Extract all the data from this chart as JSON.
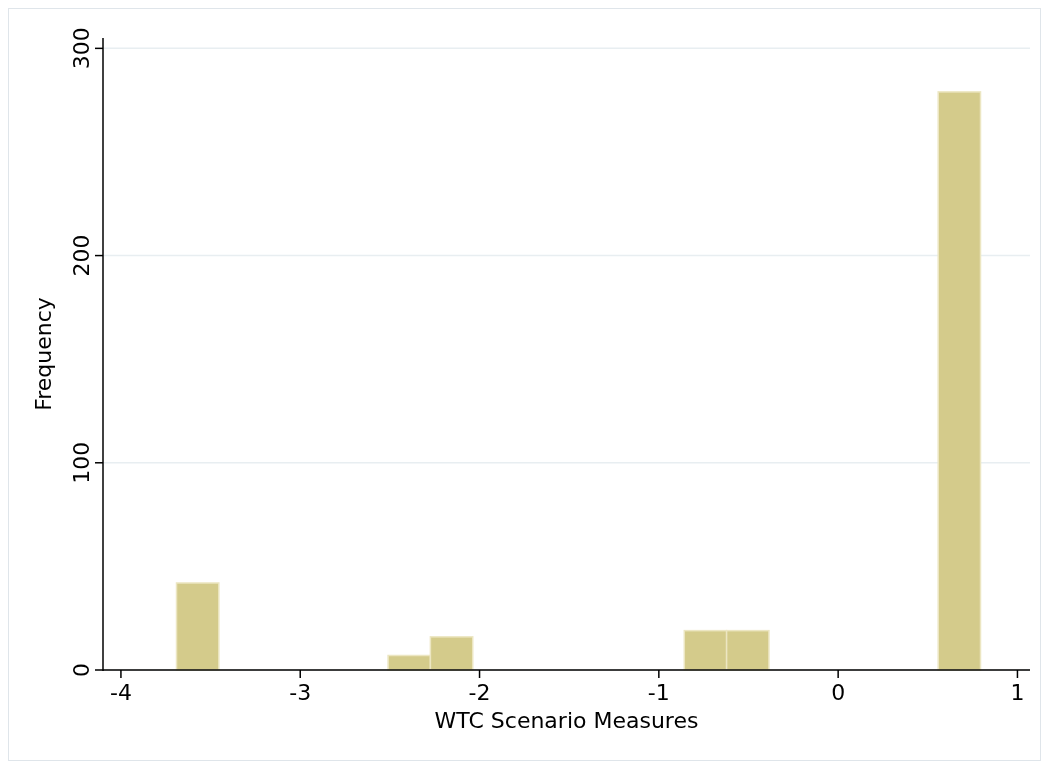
{
  "chart_data": {
    "type": "histogram",
    "xlabel": "WTC Scenario Measures",
    "ylabel": "Frequency",
    "bins": [
      -3.69,
      -3.454,
      -3.218,
      -2.982,
      -2.746,
      -2.51,
      -2.274,
      -2.038,
      -1.802,
      -1.566,
      -1.33,
      -1.094,
      -0.858,
      -0.622,
      -0.386,
      -0.15,
      0.086,
      0.322,
      0.558,
      0.794
    ],
    "values": [
      42,
      0,
      0,
      0,
      0,
      7,
      16,
      0,
      0,
      0,
      0,
      0,
      19,
      19,
      0,
      0,
      0,
      0,
      279
    ],
    "color": "#d4cb8b",
    "xlim": [
      -4.1,
      1.07
    ],
    "xticks": [
      -4,
      -3,
      -2,
      -1,
      0,
      1
    ],
    "ylim": [
      0,
      305
    ],
    "yticks": [
      0,
      100,
      200,
      300
    ],
    "grid": "y"
  }
}
